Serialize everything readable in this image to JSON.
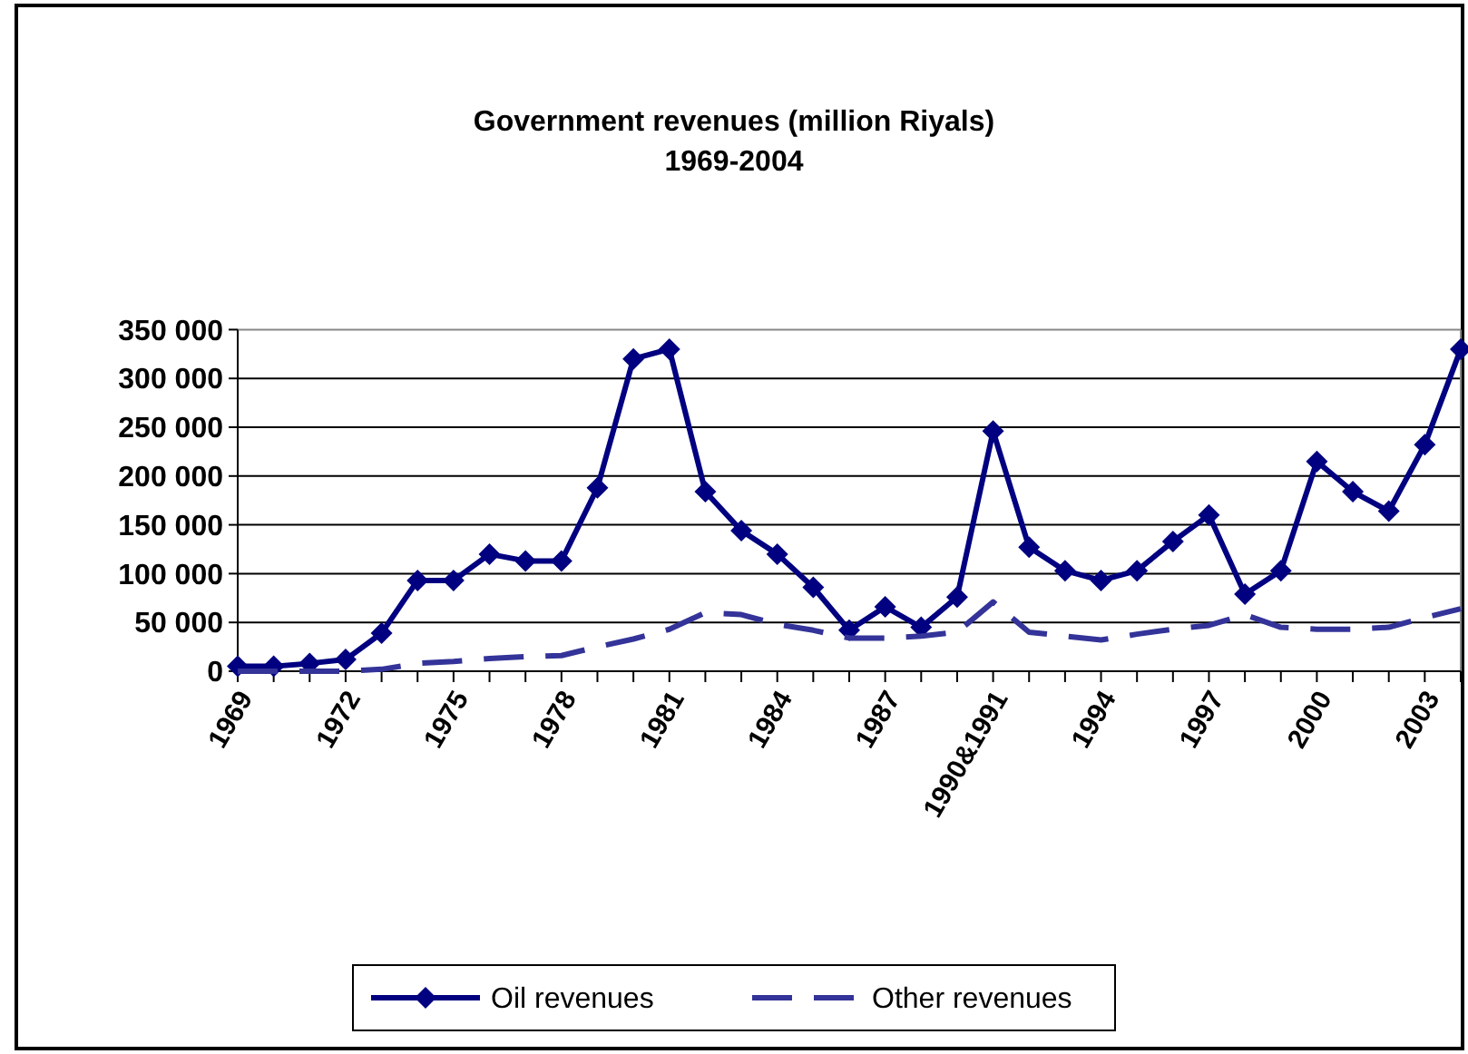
{
  "chart_data": {
    "type": "line",
    "title": "Government revenues (million Riyals)\n1969-2004",
    "categories": [
      "1969",
      null,
      null,
      "1972",
      null,
      null,
      "1975",
      null,
      null,
      "1978",
      null,
      null,
      "1981",
      null,
      null,
      "1984",
      null,
      null,
      "1987",
      null,
      null,
      "1990&1991",
      null,
      null,
      "1994",
      null,
      null,
      "1997",
      null,
      null,
      "2000",
      null,
      null,
      "2003",
      null
    ],
    "series": [
      {
        "name": "Oil revenues",
        "color": "#000080",
        "marker": "diamond",
        "line_style": "solid",
        "values": [
          5000,
          5000,
          8000,
          12000,
          39000,
          93000,
          93000,
          120000,
          113000,
          113000,
          188000,
          320000,
          330000,
          184000,
          144000,
          120000,
          86000,
          42000,
          66000,
          45000,
          76000,
          246000,
          127000,
          103000,
          93000,
          103000,
          133000,
          160000,
          79000,
          103000,
          215000,
          184000,
          164000,
          232000,
          330000
        ]
      },
      {
        "name": "Other revenues",
        "color": "#333399",
        "marker": "none",
        "line_style": "dashed",
        "values": [
          0,
          0,
          0,
          0,
          2000,
          8000,
          10000,
          13000,
          15000,
          16000,
          25000,
          33000,
          43000,
          60000,
          58000,
          48000,
          42000,
          34000,
          34000,
          36000,
          40000,
          71000,
          40000,
          36000,
          32000,
          38000,
          43000,
          47000,
          58000,
          45000,
          43000,
          43000,
          45000,
          55000,
          64000
        ]
      }
    ],
    "ylim": [
      0,
      350000
    ],
    "yticks": [
      {
        "value": 0,
        "label": "0"
      },
      {
        "value": 50000,
        "label": "50 000"
      },
      {
        "value": 100000,
        "label": "100 000"
      },
      {
        "value": 150000,
        "label": "150 000"
      },
      {
        "value": 200000,
        "label": "200 000"
      },
      {
        "value": 250000,
        "label": "250 000"
      },
      {
        "value": 300000,
        "label": "300 000"
      },
      {
        "value": 350000,
        "label": "350 000"
      }
    ],
    "grid": "y",
    "legend": "bottom"
  }
}
